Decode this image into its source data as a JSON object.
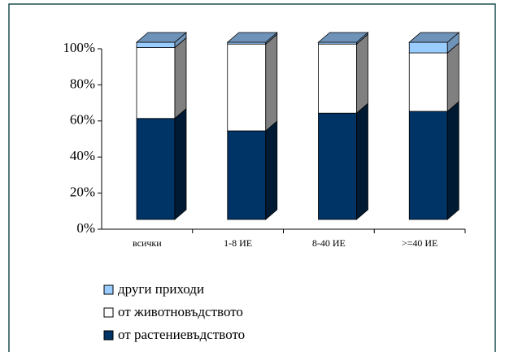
{
  "chart_data": {
    "type": "bar3d_stacked",
    "categories": [
      "всички",
      "1-8 ИЕ",
      "8-40 ИЕ",
      ">=40 ИЕ"
    ],
    "series": [
      {
        "name": "от растениевъдството",
        "color": "#003366",
        "values": [
          57,
          50,
          60,
          61
        ]
      },
      {
        "name": "от животновъдството",
        "color": "#ffffff",
        "values": [
          40,
          49,
          39,
          33
        ]
      },
      {
        "name": "други приходи",
        "color": "#99ccff",
        "values": [
          3,
          1,
          1,
          6
        ]
      }
    ],
    "ylim": [
      0,
      100
    ],
    "yticks": [
      {
        "value": 0,
        "label": "0%"
      },
      {
        "value": 20,
        "label": "20%"
      },
      {
        "value": 40,
        "label": "40%"
      },
      {
        "value": 60,
        "label": "60%"
      },
      {
        "value": 80,
        "label": "80%"
      },
      {
        "value": 100,
        "label": "100%"
      }
    ],
    "legend": "bottom-left"
  }
}
